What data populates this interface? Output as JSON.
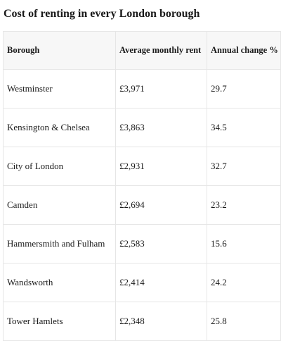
{
  "title": "Cost of renting in every London borough",
  "table": {
    "headers": [
      "Borough",
      "Average monthly rent",
      "Annual change %"
    ],
    "rows": [
      [
        "Westminster",
        "£3,971",
        "29.7"
      ],
      [
        "Kensington & Chelsea",
        "£3,863",
        "34.5"
      ],
      [
        "City of London",
        "£2,931",
        "32.7"
      ],
      [
        "Camden",
        "£2,694",
        "23.2"
      ],
      [
        "Hammersmith and Fulham",
        "£2,583",
        "15.6"
      ],
      [
        "Wandsworth",
        "£2,414",
        "24.2"
      ],
      [
        "Tower Hamlets",
        "£2,348",
        "25.8"
      ]
    ]
  }
}
